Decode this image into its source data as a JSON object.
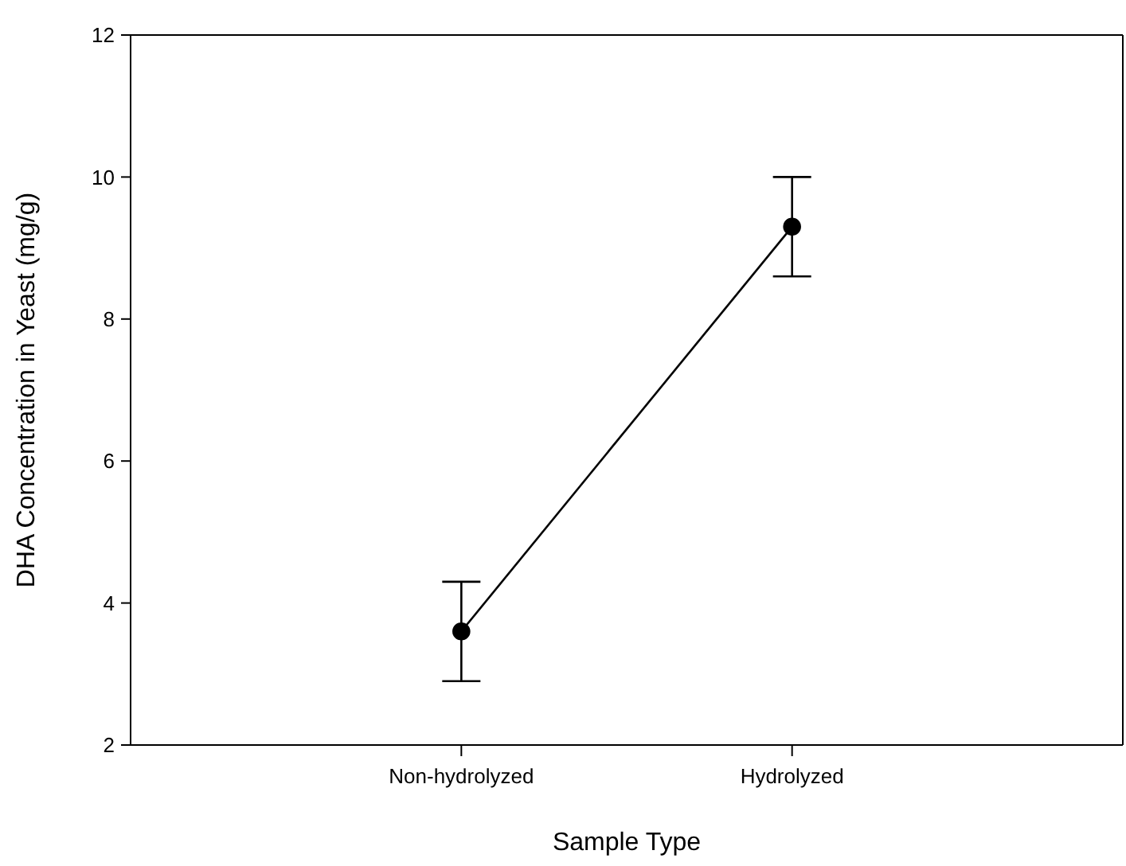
{
  "chart_data": {
    "type": "line",
    "xlabel": "Sample Type",
    "ylabel": "DHA Concentration in Yeast (mg/g)",
    "categories": [
      "Non-hydrolyzed",
      "Hydrolyzed"
    ],
    "series": [
      {
        "color": "#000000",
        "values": [
          3.6,
          9.3
        ],
        "errors": [
          [
            2.9,
            4.3
          ],
          [
            8.6,
            10.0
          ]
        ]
      }
    ],
    "ylim": [
      2,
      12
    ],
    "yticks": [
      2,
      4,
      6,
      8,
      10,
      12
    ],
    "marker": "circle",
    "line_style": "solid"
  }
}
